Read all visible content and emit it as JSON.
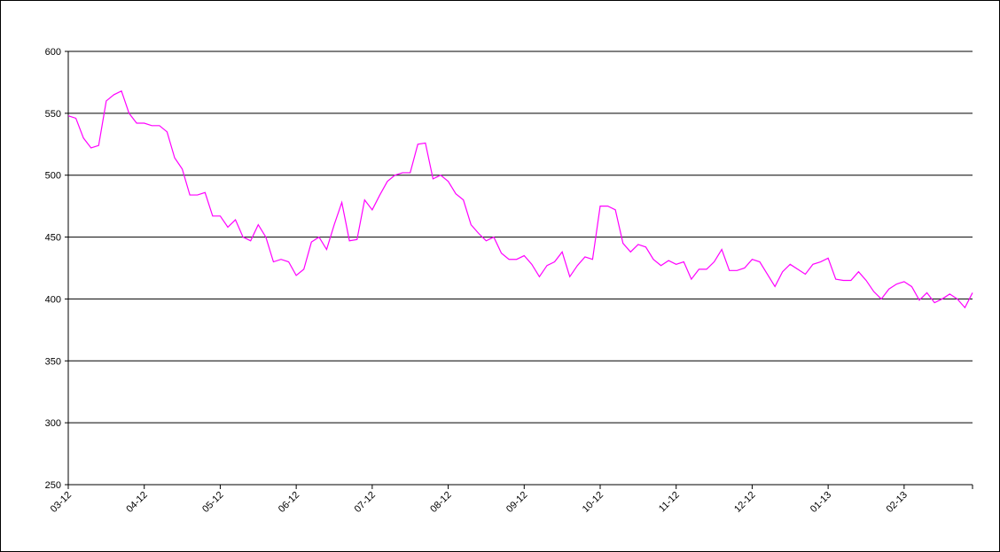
{
  "chart_data": {
    "type": "line",
    "categories": [
      "03-12",
      null,
      null,
      null,
      null,
      null,
      null,
      null,
      null,
      null,
      "04-12",
      null,
      null,
      null,
      null,
      null,
      null,
      null,
      null,
      null,
      "05-12",
      null,
      null,
      null,
      null,
      null,
      null,
      null,
      null,
      null,
      "06-12",
      null,
      null,
      null,
      null,
      null,
      null,
      null,
      null,
      null,
      "07-12",
      null,
      null,
      null,
      null,
      null,
      null,
      null,
      null,
      null,
      "08-12",
      null,
      null,
      null,
      null,
      null,
      null,
      null,
      null,
      null,
      "09-12",
      null,
      null,
      null,
      null,
      null,
      null,
      null,
      null,
      null,
      "10-12",
      null,
      null,
      null,
      null,
      null,
      null,
      null,
      null,
      null,
      "11-12",
      null,
      null,
      null,
      null,
      null,
      null,
      null,
      null,
      null,
      "12-12",
      null,
      null,
      null,
      null,
      null,
      null,
      null,
      null,
      null,
      "01-13",
      null,
      null,
      null,
      null,
      null,
      null,
      null,
      null,
      null,
      "02-13",
      null,
      null,
      null,
      null,
      null,
      null,
      null,
      null,
      null
    ],
    "values": [
      548,
      546,
      530,
      522,
      524,
      560,
      565,
      568,
      550,
      542,
      542,
      540,
      540,
      535,
      514,
      505,
      484,
      484,
      486,
      467,
      467,
      458,
      464,
      450,
      447,
      460,
      450,
      430,
      432,
      430,
      419,
      424,
      446,
      450,
      440,
      460,
      478,
      447,
      448,
      480,
      472,
      484,
      495,
      500,
      502,
      502,
      525,
      526,
      497,
      500,
      495,
      485,
      480,
      460,
      453,
      447,
      450,
      437,
      432,
      432,
      435,
      428,
      418,
      427,
      430,
      438,
      418,
      427,
      434,
      432,
      475,
      475,
      472,
      445,
      438,
      444,
      442,
      432,
      427,
      431,
      428,
      430,
      416,
      424,
      424,
      430,
      440,
      423,
      423,
      425,
      432,
      430,
      420,
      410,
      422,
      428,
      424,
      420,
      428,
      430,
      433,
      416,
      415,
      415,
      422,
      415,
      406,
      400,
      408,
      412,
      414,
      410,
      399,
      405,
      397,
      400,
      404,
      400,
      393,
      405
    ],
    "color": "#ff00ff",
    "ylim": [
      250,
      600
    ],
    "yticks": [
      250,
      300,
      350,
      400,
      450,
      500,
      550,
      600
    ],
    "grid": true
  }
}
